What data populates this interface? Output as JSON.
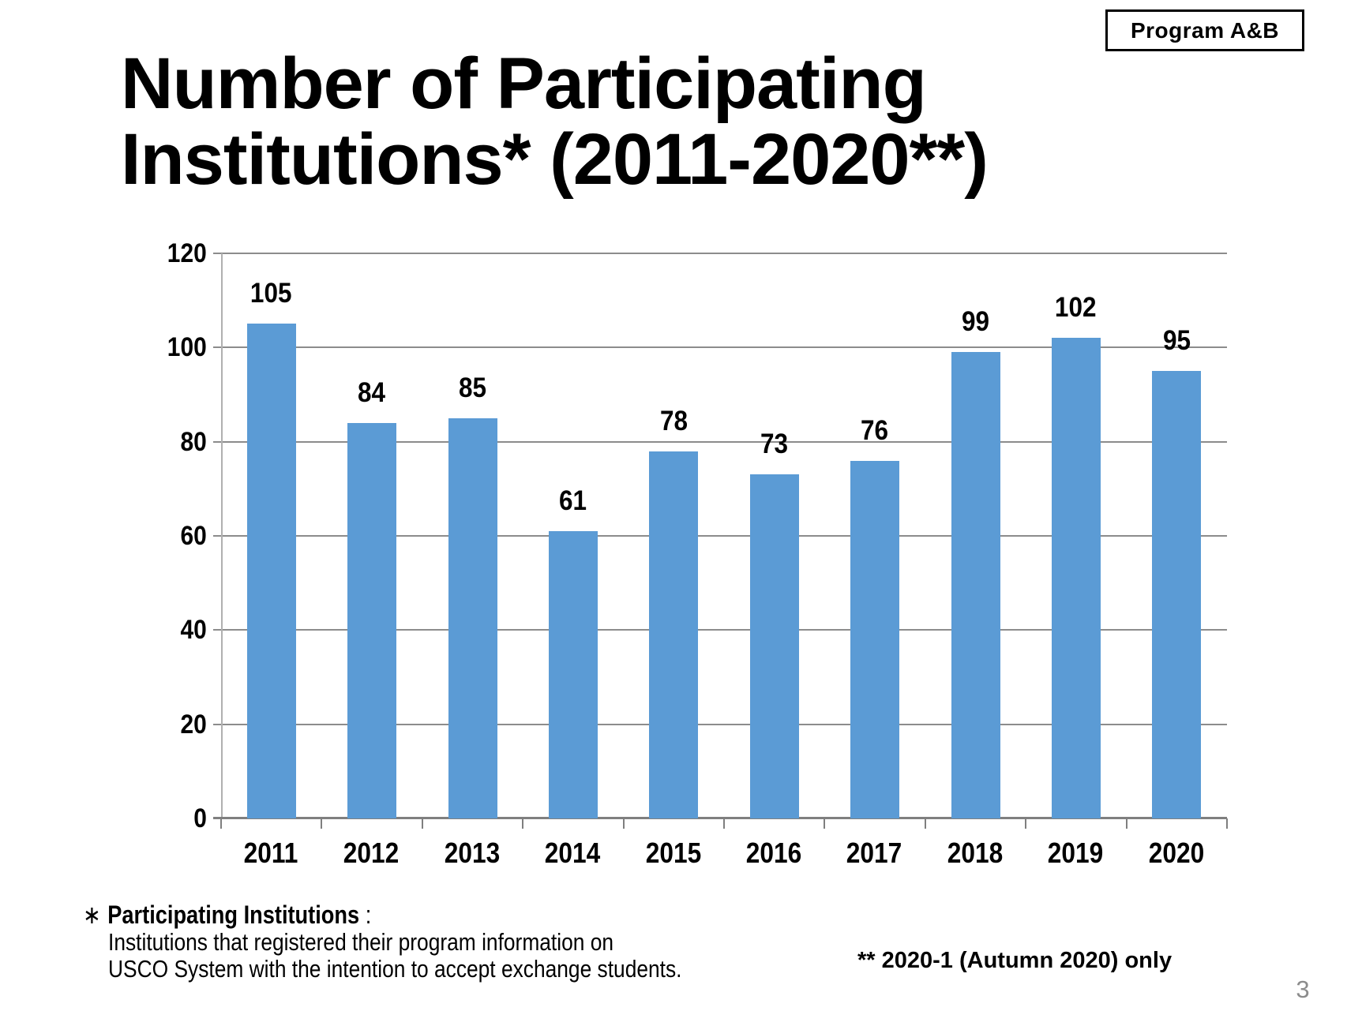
{
  "badge": {
    "label": "Program A&B"
  },
  "title": {
    "line1": "Number of Participating",
    "line2": "Institutions* (2011-2020**)"
  },
  "chart_data": {
    "type": "bar",
    "categories": [
      "2011",
      "2012",
      "2013",
      "2014",
      "2015",
      "2016",
      "2017",
      "2018",
      "2019",
      "2020"
    ],
    "values": [
      105,
      84,
      85,
      61,
      78,
      73,
      76,
      99,
      102,
      95
    ],
    "title": "",
    "xlabel": "",
    "ylabel": "",
    "ylim": [
      0,
      120
    ],
    "yticks": [
      0,
      20,
      40,
      60,
      80,
      100,
      120
    ],
    "grid": true,
    "legend": "none",
    "data_labels": true,
    "bar_color": "#5b9bd5",
    "gridline_color": "#8c8c8c",
    "axis_color": "#7f7f7f"
  },
  "footnotes": {
    "left_asterisk": "∗",
    "left_term": "Participating Institutions",
    "left_colon": ":",
    "left_line2": "Institutions that registered their program information on",
    "left_line3": "USCO System with the intention to accept exchange students.",
    "right_note": "** 2020-1 (Autumn 2020) only"
  },
  "page_number": "3"
}
